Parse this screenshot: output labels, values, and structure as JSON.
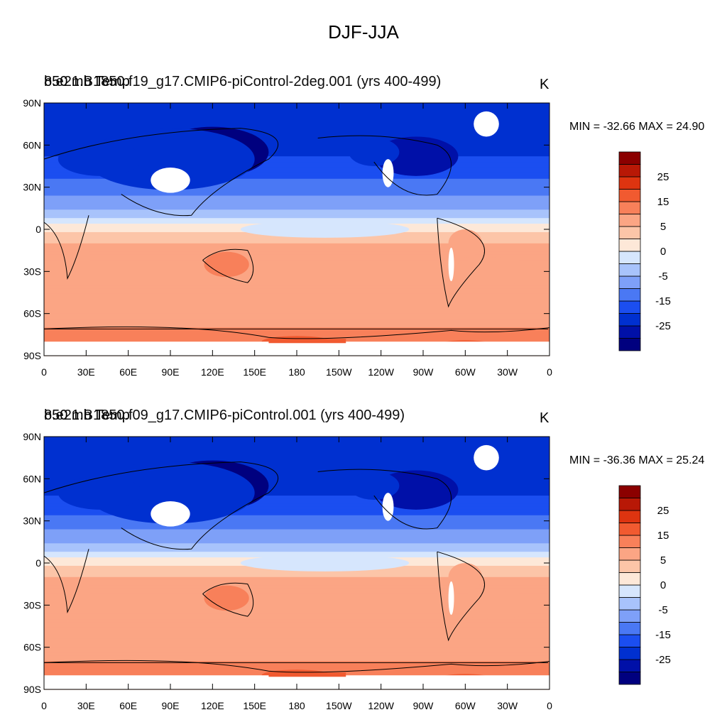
{
  "title": "DJF-JJA",
  "colorbar": {
    "colors": [
      "#00007f",
      "#0010a8",
      "#0030d0",
      "#1b4ef0",
      "#4a78f4",
      "#7ea0f8",
      "#a8c3fb",
      "#d6e6fd",
      "#fde8d8",
      "#fcc5a8",
      "#fba584",
      "#f8805a",
      "#f15a30",
      "#de3410",
      "#b81806",
      "#8b0000"
    ],
    "labels": [
      "25",
      "15",
      "5",
      "0",
      "-5",
      "-15",
      "-25"
    ]
  },
  "x_ticks": [
    "0",
    "30E",
    "60E",
    "90E",
    "120E",
    "150E",
    "180",
    "150W",
    "120W",
    "90W",
    "60W",
    "30W",
    "0"
  ],
  "y_ticks": [
    "90N",
    "60N",
    "30N",
    "0",
    "30S",
    "60S",
    "90S"
  ],
  "panels": [
    {
      "left_title": "850 mb Temp",
      "case_title": "b.e21.B1850.f19_g17.CMIP6-piControl-2deg.001 (yrs 400-499)",
      "units": "K",
      "min_max": "MIN = -32.66 MAX =  24.90"
    },
    {
      "left_title": "850 mb Temp",
      "case_title": "b.e21.B1850.f09_g17.CMIP6-piControl.001 (yrs 400-499)",
      "units": "K",
      "min_max": "MIN = -36.36 MAX =  25.24"
    }
  ],
  "chart_data": [
    {
      "type": "heatmap",
      "title": "DJF-JJA",
      "subtitle": "b.e21.B1850.f19_g17.CMIP6-piControl-2deg.001 (yrs 400-499)",
      "variable": "850 mb Temp",
      "units": "K",
      "min": -32.66,
      "max": 24.9,
      "xlim": [
        0,
        360
      ],
      "ylim": [
        -90,
        90
      ],
      "contour_levels": [
        -30,
        -25,
        -20,
        -15,
        -10,
        -5,
        0,
        5,
        10,
        15,
        20,
        25,
        30
      ],
      "zonal_bands": [
        {
          "lat": 80,
          "value": -20
        },
        {
          "lat": 60,
          "value": -22
        },
        {
          "lat": 45,
          "value": -18
        },
        {
          "lat": 30,
          "value": -13
        },
        {
          "lat": 15,
          "value": -6
        },
        {
          "lat": 0,
          "value": 2
        },
        {
          "lat": -15,
          "value": 7
        },
        {
          "lat": -30,
          "value": 9
        },
        {
          "lat": -45,
          "value": 7
        },
        {
          "lat": -60,
          "value": 5
        },
        {
          "lat": -75,
          "value": 13
        }
      ]
    },
    {
      "type": "heatmap",
      "title": "DJF-JJA",
      "subtitle": "b.e21.B1850.f09_g17.CMIP6-piControl.001 (yrs 400-499)",
      "variable": "850 mb Temp",
      "units": "K",
      "min": -36.36,
      "max": 25.24,
      "xlim": [
        0,
        360
      ],
      "ylim": [
        -90,
        90
      ],
      "contour_levels": [
        -30,
        -25,
        -20,
        -15,
        -10,
        -5,
        0,
        5,
        10,
        15,
        20,
        25,
        30
      ],
      "zonal_bands": [
        {
          "lat": 80,
          "value": -20
        },
        {
          "lat": 60,
          "value": -24
        },
        {
          "lat": 45,
          "value": -19
        },
        {
          "lat": 30,
          "value": -13
        },
        {
          "lat": 15,
          "value": -6
        },
        {
          "lat": 0,
          "value": 2
        },
        {
          "lat": -15,
          "value": 7
        },
        {
          "lat": -30,
          "value": 9
        },
        {
          "lat": -45,
          "value": 7
        },
        {
          "lat": -60,
          "value": 5
        },
        {
          "lat": -75,
          "value": 13
        }
      ]
    }
  ]
}
